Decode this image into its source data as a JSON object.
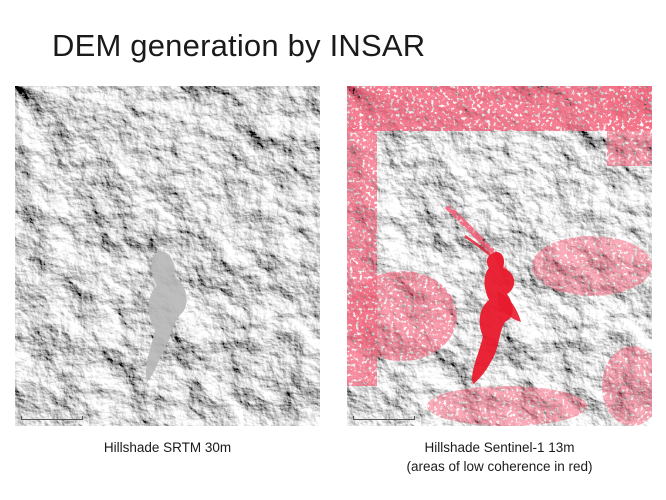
{
  "slide": {
    "title": "DEM generation by INSAR"
  },
  "panels": [
    {
      "caption_line1": "Hillshade SRTM 30m",
      "caption_line2": ""
    },
    {
      "caption_line1": "Hillshade Sentinel-1 13m",
      "caption_line2": "(areas of low coherence in red)"
    }
  ],
  "colors": {
    "hillshade_base": "#c9c9c9",
    "low_coherence": "#e8192c"
  }
}
